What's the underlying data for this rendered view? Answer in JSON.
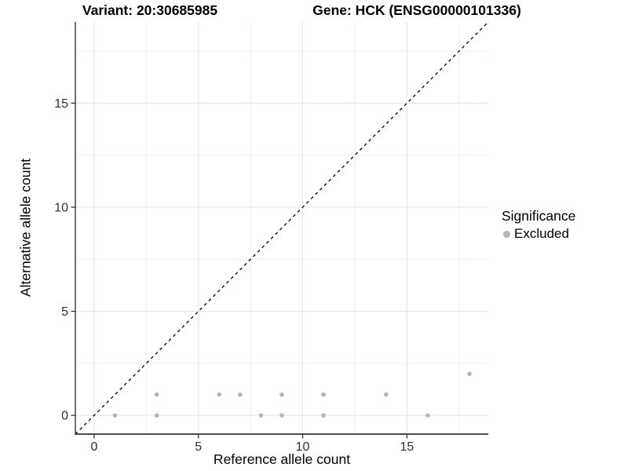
{
  "chart_data": {
    "type": "scatter",
    "titles": {
      "left": "Variant: 20:30685985",
      "right": "Gene: HCK (ENSG00000101336)"
    },
    "xlabel": "Reference allele count",
    "ylabel": "Alternative allele count",
    "xlim": [
      -0.9,
      18.9
    ],
    "ylim": [
      -0.9,
      18.9
    ],
    "x_major_ticks": [
      0,
      5,
      10,
      15
    ],
    "y_major_ticks": [
      0,
      5,
      10,
      15
    ],
    "x_minor_ticks": [
      2.5,
      7.5,
      12.5,
      17.5
    ],
    "y_minor_ticks": [
      2.5,
      7.5,
      12.5,
      17.5
    ],
    "grid": true,
    "identity_line": {
      "equation": "y = x",
      "style": "dashed",
      "color": "#000000"
    },
    "series": [
      {
        "name": "Excluded",
        "color": "#b5b5b5",
        "points": [
          {
            "x": 1,
            "y": 0
          },
          {
            "x": 3,
            "y": 0
          },
          {
            "x": 3,
            "y": 1
          },
          {
            "x": 6,
            "y": 1
          },
          {
            "x": 7,
            "y": 1
          },
          {
            "x": 8,
            "y": 0
          },
          {
            "x": 9,
            "y": 0
          },
          {
            "x": 9,
            "y": 1
          },
          {
            "x": 11,
            "y": 0
          },
          {
            "x": 11,
            "y": 1
          },
          {
            "x": 14,
            "y": 1
          },
          {
            "x": 16,
            "y": 0
          },
          {
            "x": 18,
            "y": 2
          }
        ]
      }
    ],
    "legend": {
      "title": "Significance",
      "position": "right",
      "items": [
        {
          "label": "Excluded",
          "color": "#b5b5b5"
        }
      ]
    }
  },
  "colors": {
    "background": "#ffffff",
    "grid_major": "#e4e4e4",
    "grid_minor": "#f1f1f1",
    "axis_line": "#333333",
    "tick_mark": "#333333",
    "tick_text": "#303030",
    "point": "#b5b5b5"
  }
}
